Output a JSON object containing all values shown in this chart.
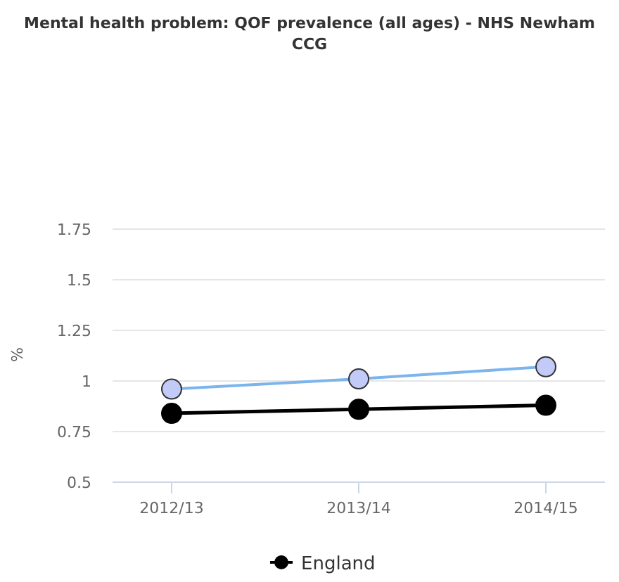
{
  "chart_data": {
    "type": "line",
    "title": "Mental health problem: QOF prevalence (all ages) - NHS Newham CCG",
    "ylabel": "%",
    "categories": [
      "2012/13",
      "2013/14",
      "2014/15"
    ],
    "series": [
      {
        "color": "#7cb5ec",
        "values": [
          0.96,
          1.01,
          1.07
        ]
      },
      {
        "name": "England",
        "color": "#000000",
        "values": [
          0.84,
          0.86,
          0.88
        ]
      }
    ],
    "ylim": [
      0.5,
      1.75
    ],
    "yticks": [
      0.5,
      0.75,
      1,
      1.25,
      1.5,
      1.75
    ],
    "grid": "y",
    "legend": "bottom",
    "marker": "circle",
    "line_style": "solid"
  }
}
